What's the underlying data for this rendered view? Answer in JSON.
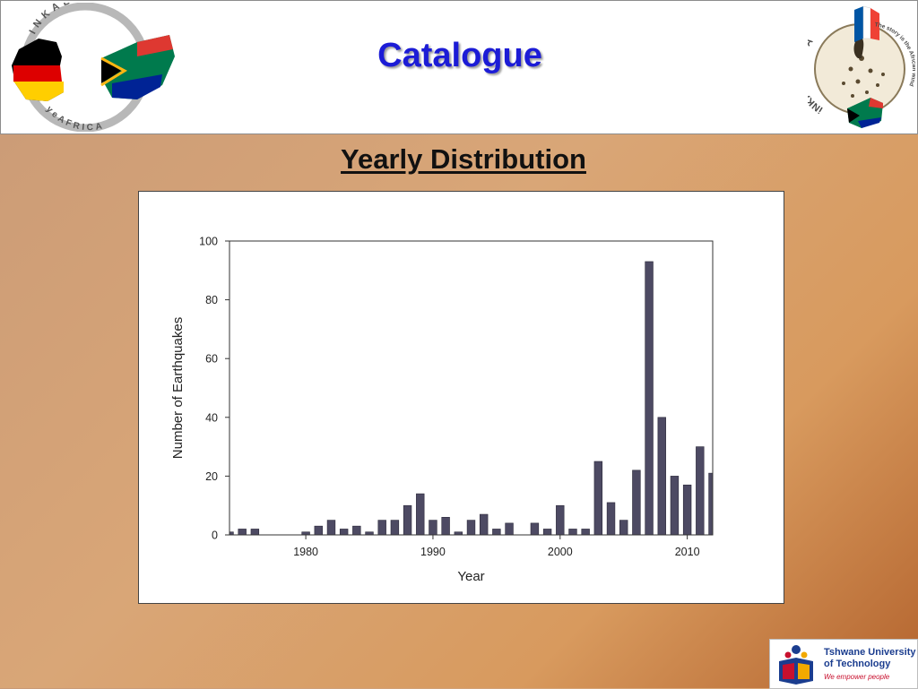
{
  "header": {
    "title": "Catalogue",
    "logo_left": {
      "text_top": "INKABA",
      "text_bottom": "yeAFRICA"
    },
    "logo_right": {
      "text_side": "iNKABA AFRICA",
      "text_ring": "The story is the African wind"
    }
  },
  "slide": {
    "subtitle": "Yearly Distribution"
  },
  "footer_logo": {
    "name_line1": "Tshwane University",
    "name_line2": "of Technology",
    "tagline": "We empower people"
  },
  "colors": {
    "bar": "#4d4a63",
    "title": "#1c1cd6"
  },
  "chart_data": {
    "type": "bar",
    "xlabel": "Year",
    "ylabel": "Number of Earthquakes",
    "xlim": [
      1974,
      2012
    ],
    "ylim": [
      0,
      100
    ],
    "xticks": [
      1980,
      1990,
      2000,
      2010
    ],
    "yticks": [
      0,
      20,
      40,
      60,
      80,
      100
    ],
    "grid": false,
    "x": [
      1974,
      1975,
      1976,
      1980,
      1981,
      1982,
      1983,
      1984,
      1985,
      1986,
      1987,
      1988,
      1989,
      1990,
      1991,
      1992,
      1993,
      1994,
      1995,
      1996,
      1998,
      1999,
      2000,
      2001,
      2002,
      2003,
      2004,
      2005,
      2006,
      2007,
      2008,
      2009,
      2010,
      2011,
      2012
    ],
    "values": [
      1,
      2,
      2,
      1,
      3,
      5,
      2,
      3,
      1,
      5,
      5,
      10,
      14,
      5,
      6,
      1,
      5,
      7,
      2,
      4,
      4,
      2,
      10,
      2,
      2,
      25,
      11,
      5,
      22,
      93,
      40,
      20,
      17,
      30,
      21
    ]
  }
}
